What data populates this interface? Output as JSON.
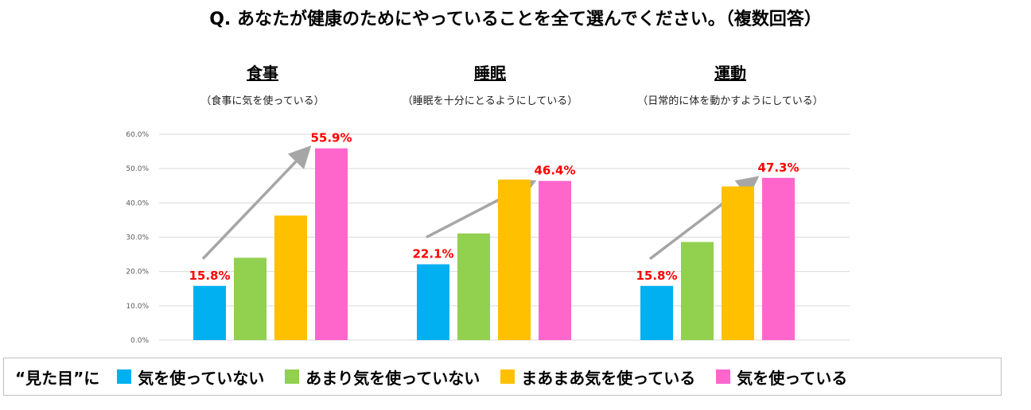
{
  "title": "Q. あなたが健康のためにやっていることを全て選んでください。（複数回答）",
  "colors": {
    "s1": "#00b0f0",
    "s2": "#92d050",
    "s3": "#ffc000",
    "s4": "#ff66cc",
    "label_red": "#ff0000",
    "arrow": "#a6a6a6",
    "grid": "#d9d9d9"
  },
  "groups": [
    {
      "title": "食事",
      "subtitle": "（食事に気を使っている）"
    },
    {
      "title": "睡眠",
      "subtitle": "（睡眠を十分にとるようにしている）"
    },
    {
      "title": "運動",
      "subtitle": "（日常的に体を動かすようにしている）"
    }
  ],
  "legend": {
    "prefix": "“見た目”に",
    "items": [
      "気を使っていない",
      "あまり気を使っていない",
      "まあまあ気を使っている",
      "気を使っている"
    ]
  },
  "chart_data": {
    "type": "bar",
    "categories": [
      "食事",
      "睡眠",
      "運動"
    ],
    "series": [
      {
        "name": "気を使っていない",
        "values": [
          15.8,
          22.1,
          15.8
        ]
      },
      {
        "name": "あまり気を使っていない",
        "values": [
          24.0,
          31.1,
          28.6
        ]
      },
      {
        "name": "まあまあ気を使っている",
        "values": [
          36.3,
          46.8,
          44.8
        ]
      },
      {
        "name": "気を使っている",
        "values": [
          55.9,
          46.4,
          47.3
        ]
      }
    ],
    "data_labels": [
      {
        "group": 0,
        "series": 0,
        "text": "15.8%"
      },
      {
        "group": 0,
        "series": 3,
        "text": "55.9%"
      },
      {
        "group": 1,
        "series": 0,
        "text": "22.1%"
      },
      {
        "group": 1,
        "series": 3,
        "text": "46.4%"
      },
      {
        "group": 2,
        "series": 0,
        "text": "15.8%"
      },
      {
        "group": 2,
        "series": 3,
        "text": "47.3%"
      }
    ],
    "yticks": [
      "0.0%",
      "10.0%",
      "20.0%",
      "30.0%",
      "40.0%",
      "50.0%",
      "60.0%"
    ],
    "ylim": [
      0,
      60
    ],
    "grid": true,
    "legend_position": "bottom"
  }
}
